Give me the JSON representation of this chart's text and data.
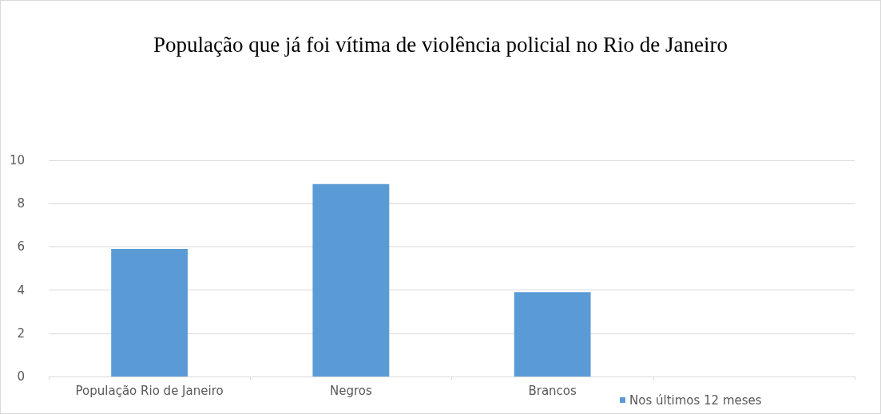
{
  "chart_data": {
    "type": "bar",
    "title": "População que já foi vítima de violência policial no Rio de Janeiro",
    "categories": [
      "População Rio de Janeiro",
      "Negros",
      "Brancos",
      null
    ],
    "series": [
      {
        "name": "Nos últimos 12 meses",
        "color": "#5b9bd5",
        "values": [
          5.9,
          8.9,
          3.9,
          null
        ]
      }
    ],
    "ylim": [
      0,
      10
    ],
    "yticks": [
      0,
      2,
      4,
      6,
      8,
      10
    ],
    "grid": "y",
    "legend": "bottom right"
  }
}
